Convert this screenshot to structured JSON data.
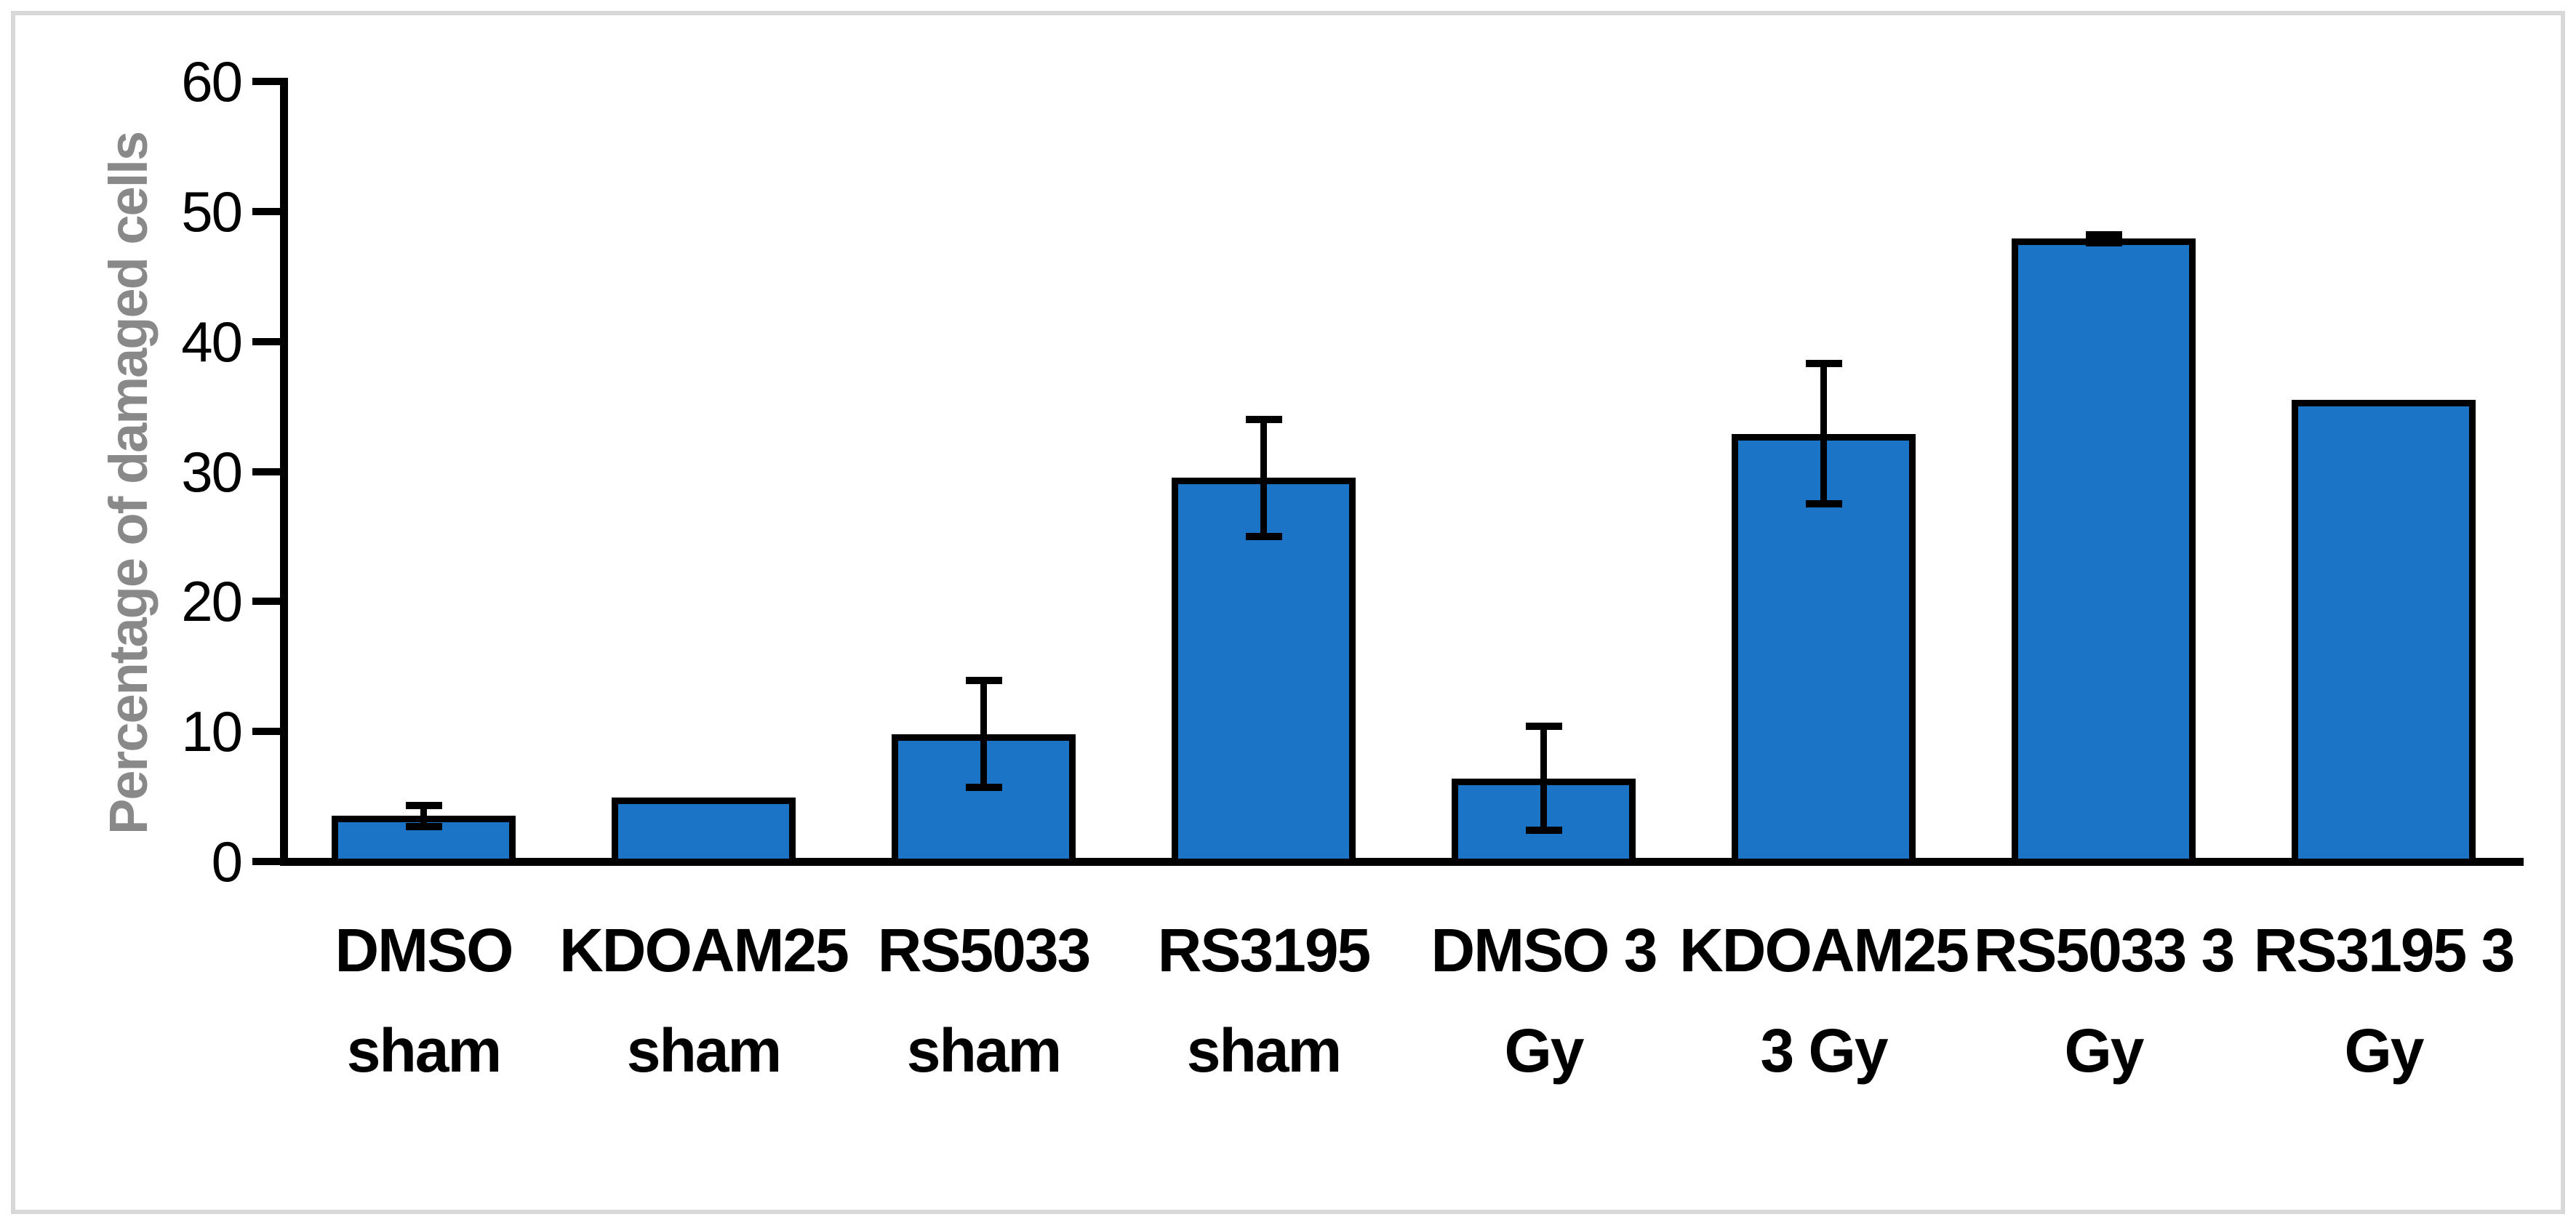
{
  "figure": {
    "background": "#FFFFFF",
    "border_color": "#D8D8D8"
  },
  "chart_data": {
    "type": "bar",
    "title": "",
    "xlabel": "",
    "ylabel": "Percentage of damaged cells",
    "ylim": [
      0,
      60
    ],
    "yticks": [
      0,
      10,
      20,
      30,
      40,
      50,
      60
    ],
    "grid": false,
    "legend_position": "none",
    "categories": [
      "DMSO sham",
      "KDOAM25 sham",
      "RS5033 sham",
      "RS3195 sham",
      "DMSO 3 Gy",
      "KDOAM25 3 Gy",
      "RS5033 3 Gy",
      "RS3195 3 Gy"
    ],
    "categories_wrapped": [
      [
        "DMSO",
        "sham"
      ],
      [
        "KDOAM25",
        "sham"
      ],
      [
        "RS5033",
        "sham"
      ],
      [
        "RS3195",
        "sham"
      ],
      [
        "DMSO 3",
        "Gy"
      ],
      [
        "KDOAM25",
        "3 Gy"
      ],
      [
        "RS5033 3",
        "Gy"
      ],
      [
        "RS3195 3",
        "Gy"
      ]
    ],
    "series": [
      {
        "name": "Percentage of damaged cells",
        "values": [
          3.5,
          4.9,
          9.8,
          29.5,
          6.4,
          32.9,
          47.9,
          35.5
        ],
        "error_bars": [
          0.8,
          null,
          4.1,
          4.5,
          4.0,
          5.4,
          0.3,
          null
        ]
      }
    ],
    "bar_fill": "#1B74C5",
    "bar_border": "#000000",
    "axis_color": "#000000",
    "ylabel_color": "#898989"
  }
}
